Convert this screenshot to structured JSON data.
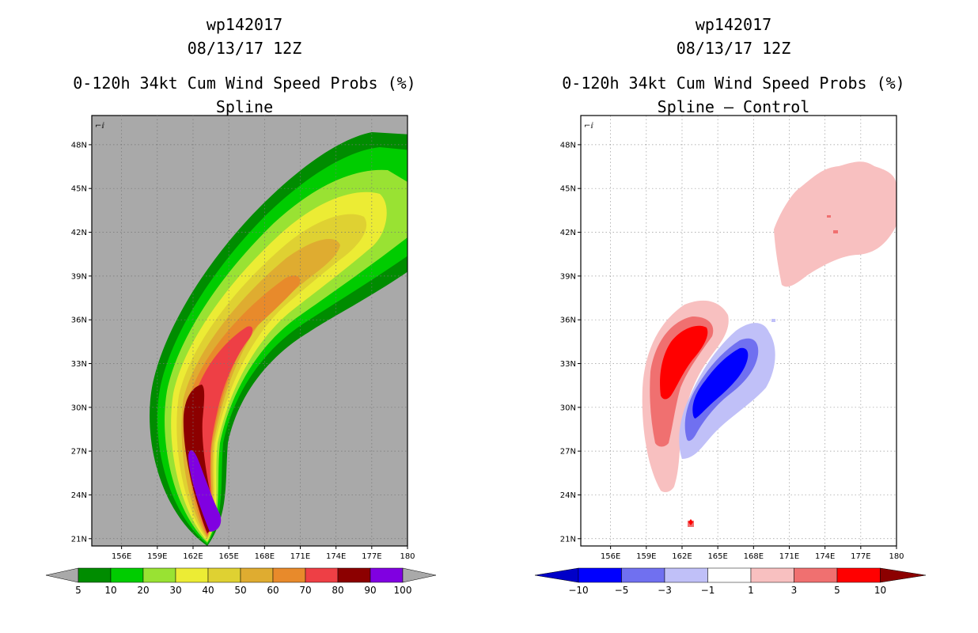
{
  "panels": [
    {
      "title": "wp142017",
      "datetime": "08/13/17 12Z",
      "product": "0-120h 34kt Cum Wind Speed Probs (%)",
      "subtitle": "Spline"
    },
    {
      "title": "wp142017",
      "datetime": "08/13/17 12Z",
      "product": "0-120h 34kt Cum Wind Speed Probs (%)",
      "subtitle": "Spline – Control"
    }
  ],
  "chart_data": [
    {
      "type": "heatmap",
      "title": "0-120h 34kt Cum Wind Speed Probs (%)",
      "subtitle": "Spline",
      "x_ticks": [
        "156E",
        "159E",
        "162E",
        "165E",
        "168E",
        "171E",
        "174E",
        "177E",
        "180"
      ],
      "y_ticks": [
        "21N",
        "24N",
        "27N",
        "30N",
        "33N",
        "36N",
        "39N",
        "42N",
        "45N",
        "48N"
      ],
      "xlim": [
        153.5,
        180
      ],
      "ylim": [
        20.5,
        50
      ],
      "background_color": "#a9a9a9",
      "colorbar": {
        "labels": [
          "5",
          "10",
          "20",
          "30",
          "40",
          "50",
          "60",
          "70",
          "80",
          "90",
          "100"
        ],
        "colors": [
          "#008c00",
          "#00cc00",
          "#99e233",
          "#ecec34",
          "#dfd132",
          "#dfac30",
          "#e88a2b",
          "#ee3f45",
          "#8c0000",
          "#8000e1"
        ]
      }
    },
    {
      "type": "heatmap",
      "title": "0-120h 34kt Cum Wind Speed Probs (%)",
      "subtitle": "Spline – Control",
      "x_ticks": [
        "156E",
        "159E",
        "162E",
        "165E",
        "168E",
        "171E",
        "174E",
        "177E",
        "180"
      ],
      "y_ticks": [
        "21N",
        "24N",
        "27N",
        "30N",
        "33N",
        "36N",
        "39N",
        "42N",
        "45N",
        "48N"
      ],
      "xlim": [
        153.5,
        180
      ],
      "ylim": [
        20.5,
        50
      ],
      "background_color": "#ffffff",
      "colorbar": {
        "labels": [
          "−10",
          "−5",
          "−3",
          "−1",
          "1",
          "3",
          "5",
          "10"
        ],
        "colors": [
          "#0000c8",
          "#0000ff",
          "#7070f0",
          "#c0c0f8",
          "#ffffff",
          "#f8c0c0",
          "#f07070",
          "#ff0000",
          "#8c0000"
        ]
      }
    }
  ]
}
